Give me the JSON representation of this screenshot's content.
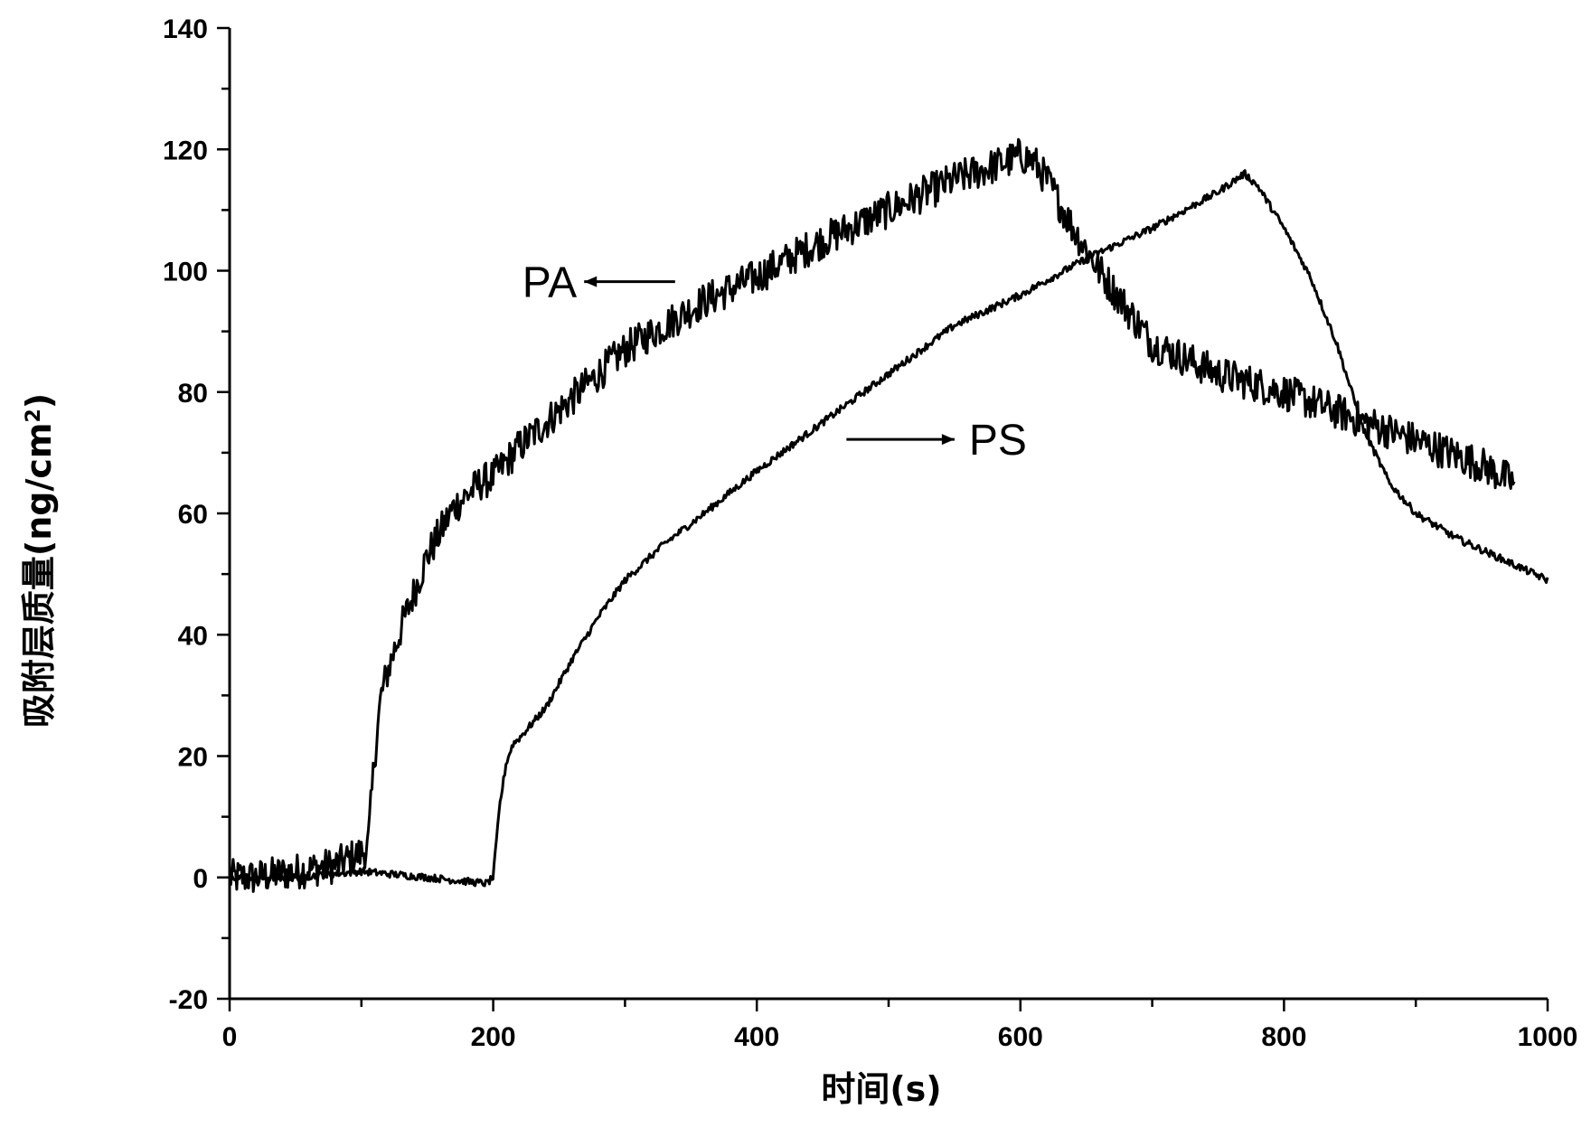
{
  "chart_data": {
    "type": "line",
    "xlabel": "时间(s)",
    "ylabel_prefix": "吸附层质量(ng/cm",
    "ylabel_sup": "2",
    "ylabel_suffix": ")",
    "xlim": [
      0,
      1000
    ],
    "ylim": [
      -20,
      140
    ],
    "x_ticks": [
      0,
      200,
      400,
      600,
      800,
      1000
    ],
    "y_ticks": [
      -20,
      0,
      20,
      40,
      60,
      80,
      100,
      120,
      140
    ],
    "grid": false,
    "legend": "none",
    "annotations": [
      {
        "text": "PA",
        "series": 0,
        "arrow": "left"
      },
      {
        "text": "PS",
        "series": 1,
        "arrow": "right"
      }
    ],
    "series": [
      {
        "name": "PA",
        "color": "#000000",
        "noise": 3,
        "x": [
          0,
          20,
          50,
          80,
          100,
          105,
          110,
          115,
          120,
          130,
          140,
          150,
          160,
          170,
          180,
          190,
          200,
          220,
          250,
          280,
          300,
          330,
          360,
          400,
          450,
          500,
          550,
          590,
          600,
          610,
          620,
          640,
          660,
          680,
          700,
          750,
          800,
          850,
          900,
          950,
          975
        ],
        "y": [
          0,
          0,
          1,
          2,
          4,
          5,
          20,
          30,
          34,
          41,
          47,
          53,
          57,
          61,
          63,
          65,
          66,
          71,
          77,
          83,
          87,
          91,
          95,
          99,
          105,
          110,
          115,
          118,
          119,
          118,
          115,
          107,
          100,
          94,
          88,
          83,
          80,
          76,
          72,
          68,
          65
        ]
      },
      {
        "name": "PS",
        "color": "#000000",
        "noise": 0.6,
        "x": [
          0,
          50,
          100,
          150,
          195,
          200,
          205,
          210,
          215,
          220,
          240,
          260,
          280,
          300,
          330,
          360,
          400,
          450,
          500,
          550,
          600,
          650,
          700,
          750,
          770,
          780,
          800,
          820,
          840,
          860,
          880,
          900,
          930,
          960,
          1000
        ],
        "y": [
          0,
          0,
          1,
          0,
          -1,
          0,
          12,
          19,
          22,
          23,
          28,
          36,
          43,
          49,
          55,
          60,
          67,
          75,
          83,
          91,
          96,
          102,
          107,
          113,
          116,
          114,
          107,
          99,
          88,
          74,
          65,
          60,
          56,
          53,
          49
        ]
      }
    ]
  }
}
